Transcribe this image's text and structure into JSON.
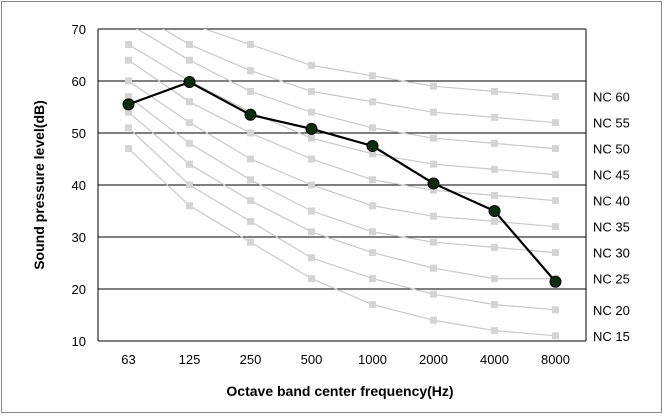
{
  "chart_data": {
    "type": "line",
    "title": "",
    "xlabel": "Octave band center frequency(Hz)",
    "ylabel": "Sound pressure level(dB)",
    "categories": [
      "63",
      "125",
      "250",
      "500",
      "1000",
      "2000",
      "4000",
      "8000"
    ],
    "ylim": [
      10,
      70
    ],
    "yticks": [
      10,
      20,
      30,
      40,
      50,
      60,
      70
    ],
    "grid": true,
    "measured": {
      "values": [
        55.5,
        59.8,
        53.5,
        50.8,
        47.5,
        40.3,
        35,
        21.4
      ],
      "color": "#000000",
      "marker_color": "#0d2b0d"
    },
    "nc_curves": [
      {
        "name": "NC 15",
        "values": [
          47,
          36,
          29,
          22,
          17,
          14,
          12,
          11
        ]
      },
      {
        "name": "NC 20",
        "values": [
          51,
          40,
          33,
          26,
          22,
          19,
          17,
          16
        ]
      },
      {
        "name": "NC 25",
        "values": [
          54,
          44,
          37,
          31,
          27,
          24,
          22,
          22
        ]
      },
      {
        "name": "NC 30",
        "values": [
          57,
          48,
          41,
          35,
          31,
          29,
          28,
          27
        ]
      },
      {
        "name": "NC 35",
        "values": [
          60,
          52,
          45,
          40,
          36,
          34,
          33,
          32
        ]
      },
      {
        "name": "NC 40",
        "values": [
          64,
          56,
          50,
          45,
          41,
          39,
          38,
          37
        ]
      },
      {
        "name": "NC 45",
        "values": [
          67,
          60,
          54,
          49,
          46,
          44,
          43,
          42
        ]
      },
      {
        "name": "NC 50",
        "values": [
          71,
          64,
          58,
          54,
          51,
          49,
          48,
          47
        ]
      },
      {
        "name": "NC 55",
        "values": [
          74,
          67,
          62,
          58,
          56,
          54,
          53,
          52
        ]
      },
      {
        "name": "NC 60",
        "values": [
          77,
          71,
          67,
          63,
          61,
          59,
          58,
          57
        ]
      }
    ],
    "nc_color": "#c8c8c8"
  }
}
